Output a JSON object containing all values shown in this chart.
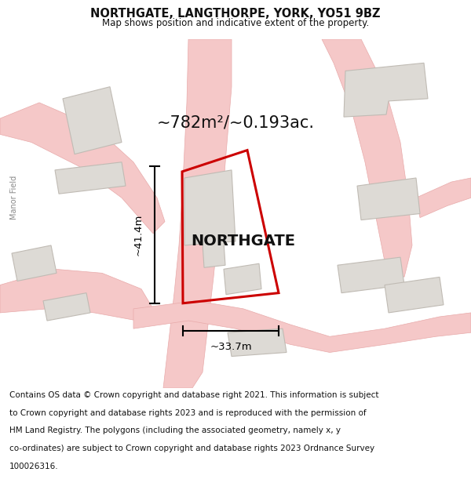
{
  "title": "NORTHGATE, LANGTHORPE, YORK, YO51 9BZ",
  "subtitle": "Map shows position and indicative extent of the property.",
  "area_label": "~782m²/~0.193ac.",
  "property_label": "NORTHGATE",
  "dim_width": "~33.7m",
  "dim_height": "~41.4m",
  "footer_lines": [
    "Contains OS data © Crown copyright and database right 2021. This information is subject",
    "to Crown copyright and database rights 2023 and is reproduced with the permission of",
    "HM Land Registry. The polygons (including the associated geometry, namely x, y",
    "co-ordinates) are subject to Crown copyright and database rights 2023 Ordnance Survey",
    "100026316."
  ],
  "map_bg": "#f2f0ed",
  "road_color": "#f5c8c8",
  "road_outline_color": "#e8aaaa",
  "building_fill": "#dddad5",
  "building_outline": "#c0bbb4",
  "plot_color": "#cc0000",
  "text_color": "#111111",
  "sidebar_label": "Manor Field",
  "title_fontsize": 10.5,
  "subtitle_fontsize": 8.5,
  "area_fontsize": 15,
  "label_fontsize": 14,
  "dim_fontsize": 9.5,
  "footer_fontsize": 7.5,
  "sidebar_fontsize": 7
}
